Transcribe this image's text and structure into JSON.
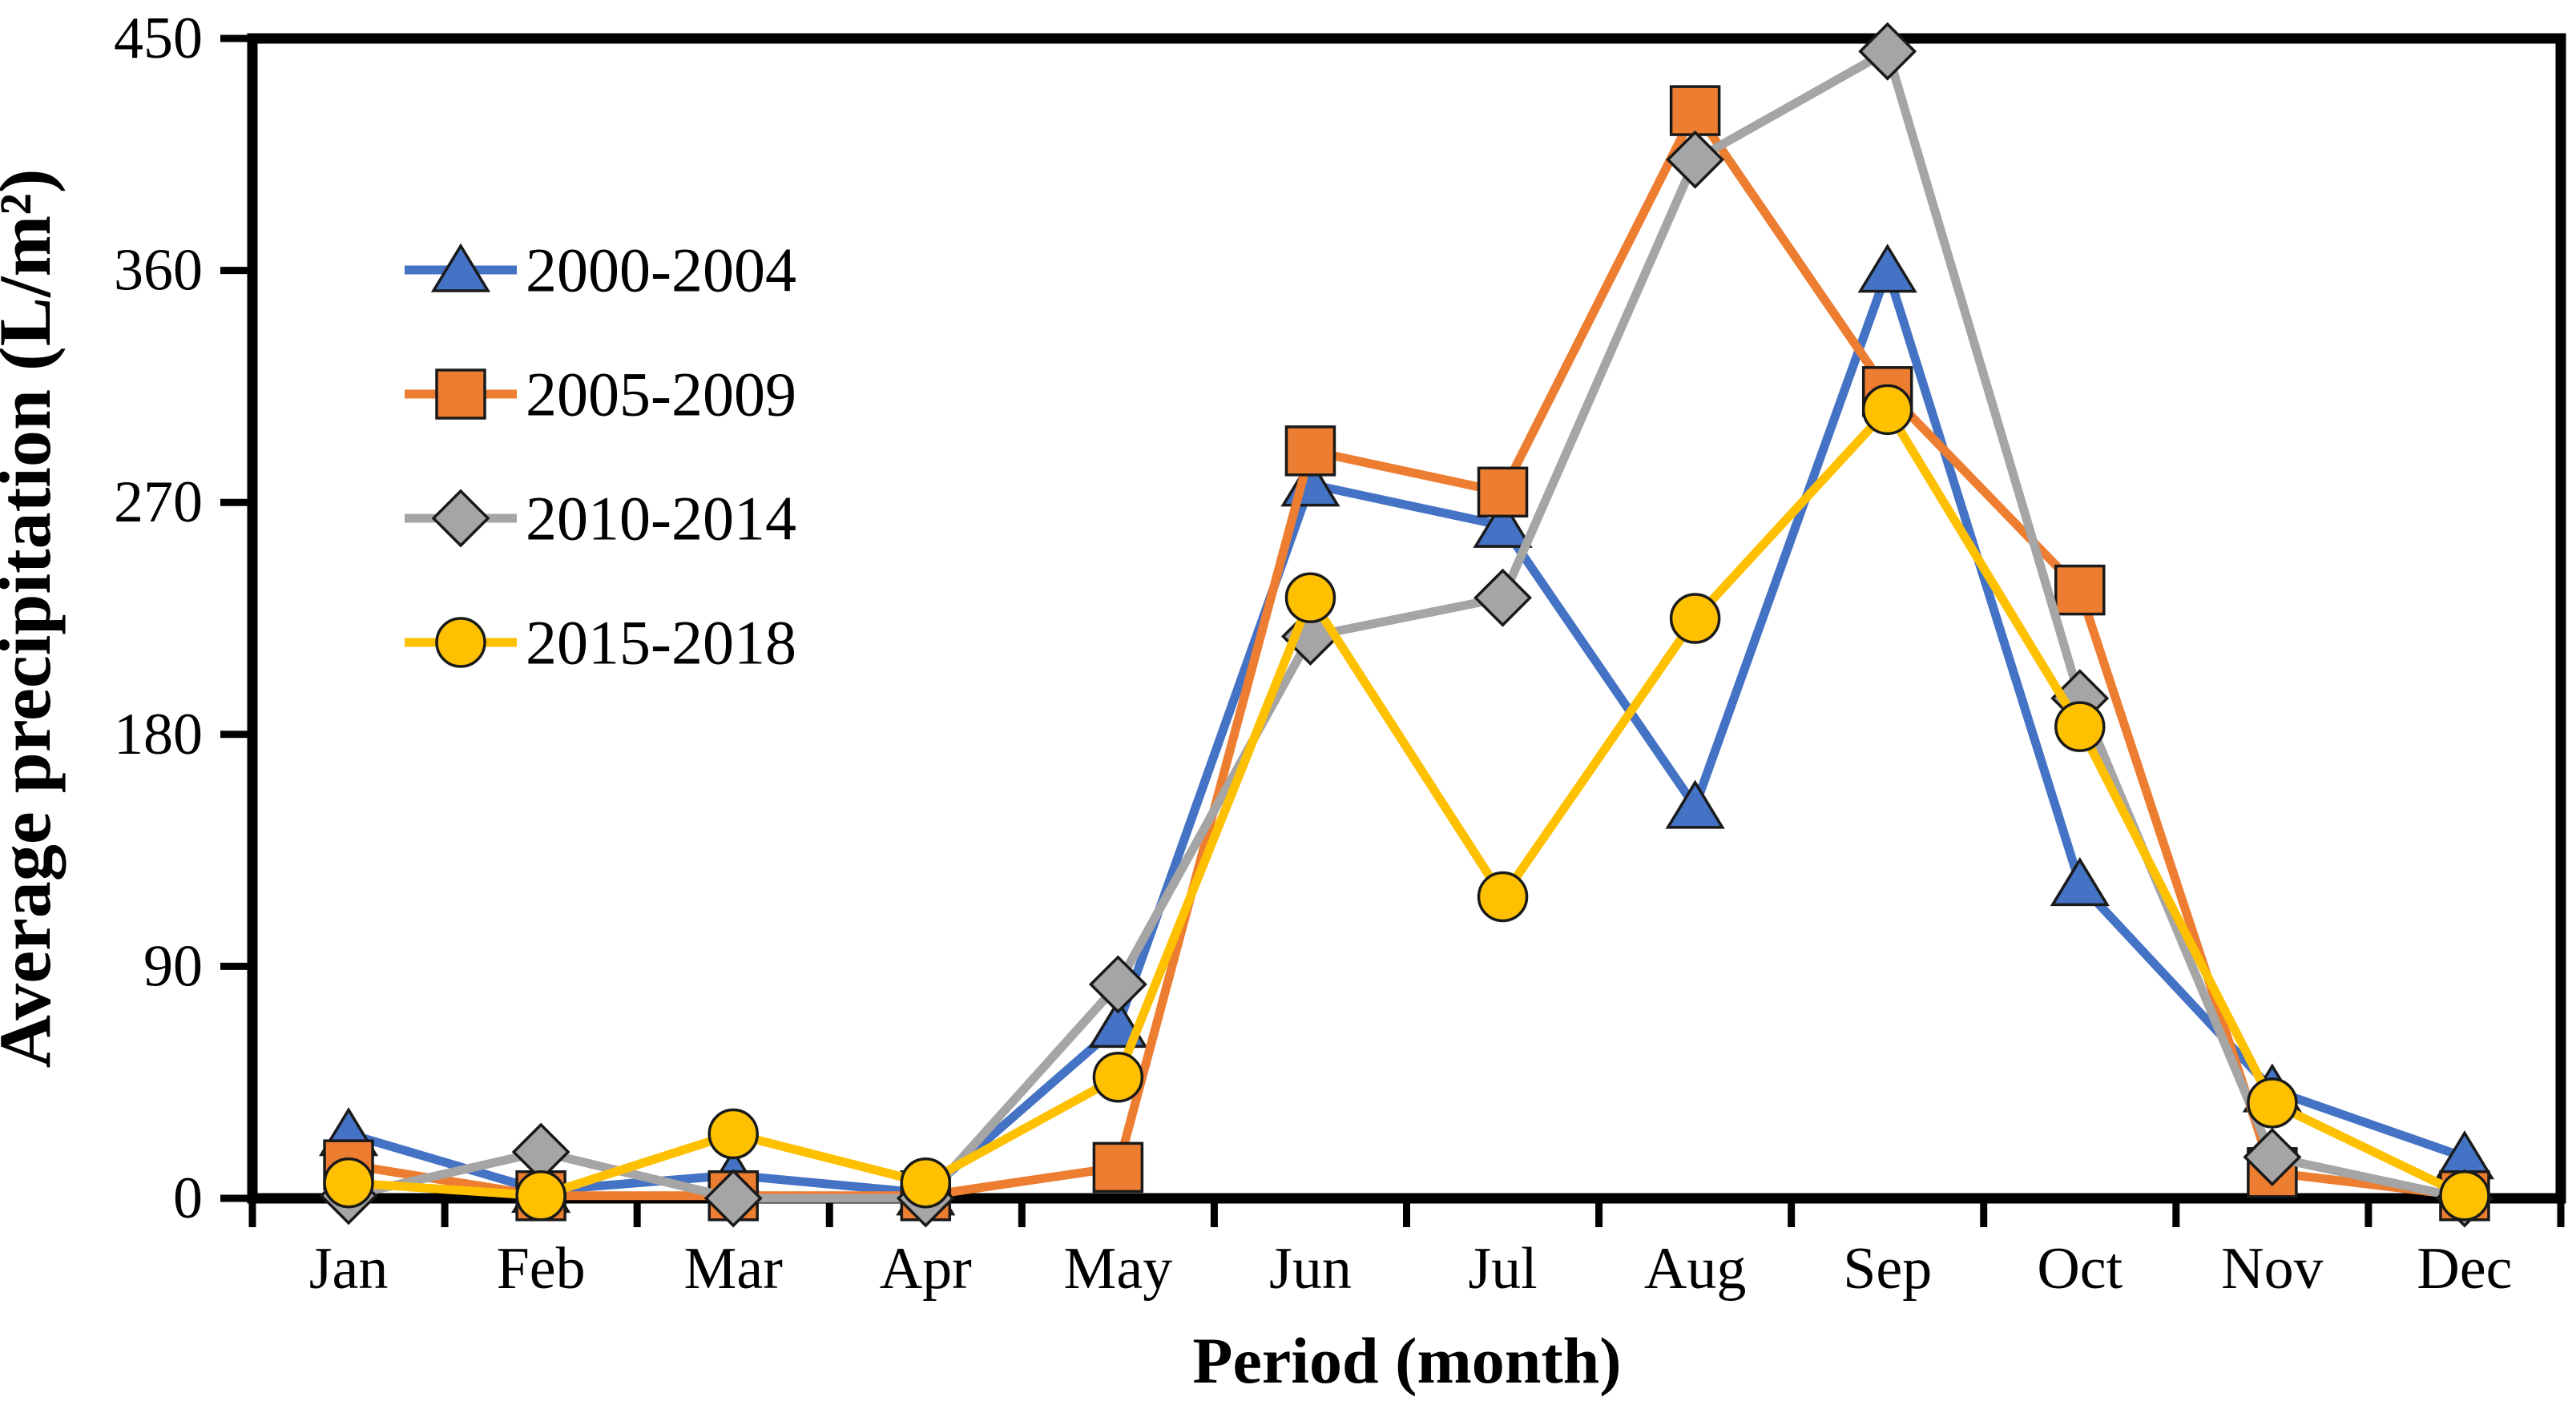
{
  "chart_data": {
    "type": "line",
    "title": "",
    "xlabel": "Period (month)",
    "ylabel": "Average precipitation (L/m²)",
    "categories": [
      "Jan",
      "Feb",
      "Mar",
      "Apr",
      "May",
      "Jun",
      "Jul",
      "Aug",
      "Sep",
      "Oct",
      "Nov",
      "Dec"
    ],
    "y_ticks": [
      0,
      90,
      180,
      270,
      360,
      450
    ],
    "ylim": [
      0,
      450
    ],
    "grid": false,
    "legend_position": "inside-upper-left",
    "axis_color": "#000000",
    "series": [
      {
        "name": "2000-2004",
        "marker": "triangle",
        "color": "#4472C4",
        "values": [
          25,
          3,
          9,
          2,
          67,
          277,
          261,
          152,
          360,
          122,
          42,
          16
        ]
      },
      {
        "name": "2005-2009",
        "marker": "square",
        "color": "#ED7D31",
        "values": [
          13,
          1,
          1,
          1,
          12,
          290,
          274,
          422,
          313,
          236,
          10,
          1
        ]
      },
      {
        "name": "2010-2014",
        "marker": "diamond",
        "color": "#A5A5A5",
        "values": [
          1,
          18,
          0,
          0,
          83,
          218,
          233,
          403,
          445,
          194,
          16,
          0
        ]
      },
      {
        "name": "2015-2018",
        "marker": "circle",
        "color": "#FFC000",
        "values": [
          6,
          1,
          25,
          6,
          47,
          233,
          117,
          225,
          306,
          183,
          37,
          1
        ]
      }
    ]
  }
}
